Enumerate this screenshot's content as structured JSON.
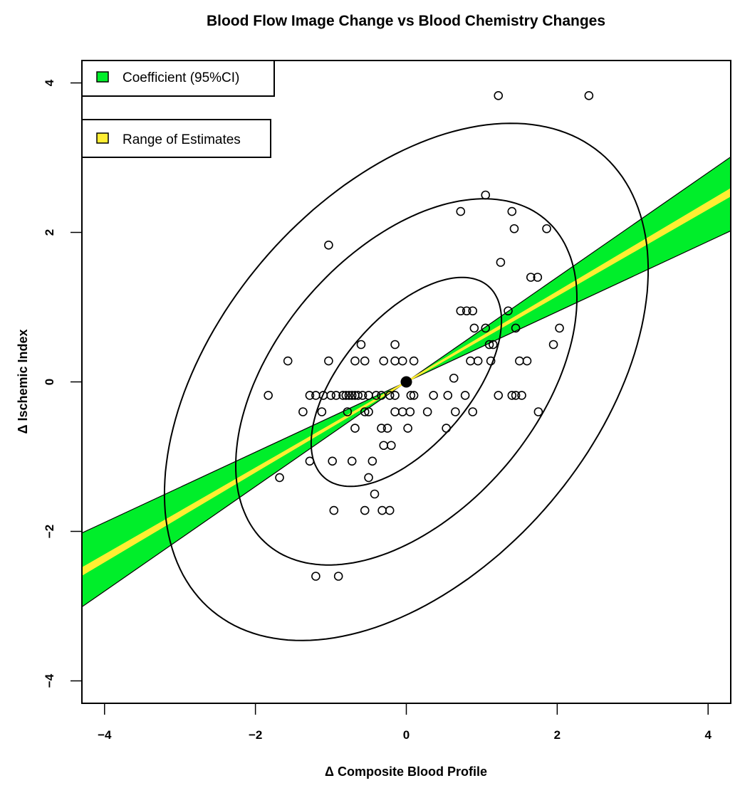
{
  "chart_data": {
    "type": "scatter",
    "title": "Blood Flow Image Change vs Blood Chemistry Changes",
    "xlabel": "Δ Composite Blood Profile",
    "ylabel": "Δ Ischemic Index",
    "xlim": [
      -4.3,
      4.3
    ],
    "ylim": [
      -4.3,
      4.3
    ],
    "xticks": [
      "−4",
      "−2",
      "0",
      "2",
      "4"
    ],
    "yticks": [
      "−4",
      "−2",
      "0",
      "2",
      "4"
    ],
    "xtick_values": [
      -4,
      -2,
      0,
      2,
      4
    ],
    "ytick_values": [
      -4,
      -2,
      0,
      2,
      4
    ],
    "grid": false,
    "legend": [
      {
        "label": "Coefficient (95%CI)",
        "color": "#00ee2a"
      },
      {
        "label": "Range of Estimates",
        "color": "#ffee33"
      }
    ],
    "legend_placement": "top-left",
    "colors": {
      "ci_band": "#00ee2a",
      "estimate_line": "#ffee33",
      "points": "#000000"
    },
    "center_point": [
      0,
      0
    ],
    "regression": {
      "slope": 0.59,
      "ci_lower_slope": 0.47,
      "ci_upper_slope": 0.7,
      "range_lower_slope": 0.58,
      "range_upper_slope": 0.6
    },
    "ellipses": [
      {
        "center": [
          0,
          0
        ],
        "a": 1.68,
        "b": 0.85,
        "angle_deg": 50
      },
      {
        "center": [
          0,
          0
        ],
        "a": 2.85,
        "b": 1.73,
        "angle_deg": 50
      },
      {
        "center": [
          0,
          0
        ],
        "a": 4.0,
        "b": 2.5,
        "angle_deg": 50
      }
    ],
    "points": [
      [
        1.22,
        3.83
      ],
      [
        2.42,
        3.83
      ],
      [
        1.05,
        2.5
      ],
      [
        0.72,
        2.28
      ],
      [
        1.4,
        2.28
      ],
      [
        1.43,
        2.05
      ],
      [
        1.86,
        2.05
      ],
      [
        -1.03,
        1.83
      ],
      [
        1.25,
        1.6
      ],
      [
        1.65,
        1.4
      ],
      [
        1.74,
        1.4
      ],
      [
        0.72,
        0.95
      ],
      [
        0.8,
        0.95
      ],
      [
        0.88,
        0.95
      ],
      [
        1.35,
        0.95
      ],
      [
        0.9,
        0.72
      ],
      [
        1.05,
        0.72
      ],
      [
        1.45,
        0.72
      ],
      [
        2.03,
        0.72
      ],
      [
        -0.6,
        0.5
      ],
      [
        -0.15,
        0.5
      ],
      [
        1.1,
        0.5
      ],
      [
        1.15,
        0.5
      ],
      [
        1.95,
        0.5
      ],
      [
        -1.57,
        0.28
      ],
      [
        -1.03,
        0.28
      ],
      [
        -0.68,
        0.28
      ],
      [
        -0.55,
        0.28
      ],
      [
        -0.3,
        0.28
      ],
      [
        -0.15,
        0.28
      ],
      [
        -0.05,
        0.28
      ],
      [
        0.1,
        0.28
      ],
      [
        0.85,
        0.28
      ],
      [
        0.95,
        0.28
      ],
      [
        1.12,
        0.28
      ],
      [
        1.5,
        0.28
      ],
      [
        1.6,
        0.28
      ],
      [
        0.63,
        0.05
      ],
      [
        -1.83,
        -0.18
      ],
      [
        -1.28,
        -0.18
      ],
      [
        -1.2,
        -0.18
      ],
      [
        -1.1,
        -0.18
      ],
      [
        -1.0,
        -0.18
      ],
      [
        -0.93,
        -0.18
      ],
      [
        -0.84,
        -0.18
      ],
      [
        -0.8,
        -0.18
      ],
      [
        -0.76,
        -0.18
      ],
      [
        -0.72,
        -0.18
      ],
      [
        -0.68,
        -0.18
      ],
      [
        -0.64,
        -0.18
      ],
      [
        -0.58,
        -0.18
      ],
      [
        -0.5,
        -0.18
      ],
      [
        -0.4,
        -0.18
      ],
      [
        -0.33,
        -0.18
      ],
      [
        -0.22,
        -0.18
      ],
      [
        -0.15,
        -0.18
      ],
      [
        0.06,
        -0.18
      ],
      [
        0.1,
        -0.18
      ],
      [
        0.36,
        -0.18
      ],
      [
        0.55,
        -0.18
      ],
      [
        0.78,
        -0.18
      ],
      [
        1.22,
        -0.18
      ],
      [
        1.4,
        -0.18
      ],
      [
        1.45,
        -0.18
      ],
      [
        1.53,
        -0.18
      ],
      [
        -1.37,
        -0.4
      ],
      [
        -1.12,
        -0.4
      ],
      [
        -0.78,
        -0.4
      ],
      [
        -0.55,
        -0.4
      ],
      [
        -0.5,
        -0.4
      ],
      [
        -0.15,
        -0.4
      ],
      [
        -0.05,
        -0.4
      ],
      [
        0.05,
        -0.4
      ],
      [
        0.28,
        -0.4
      ],
      [
        0.65,
        -0.4
      ],
      [
        0.88,
        -0.4
      ],
      [
        1.75,
        -0.4
      ],
      [
        -0.68,
        -0.62
      ],
      [
        -0.33,
        -0.62
      ],
      [
        -0.25,
        -0.62
      ],
      [
        0.02,
        -0.62
      ],
      [
        0.53,
        -0.62
      ],
      [
        -0.3,
        -0.85
      ],
      [
        -0.2,
        -0.85
      ],
      [
        -1.28,
        -1.06
      ],
      [
        -0.98,
        -1.06
      ],
      [
        -0.72,
        -1.06
      ],
      [
        -0.45,
        -1.06
      ],
      [
        -1.68,
        -1.28
      ],
      [
        -0.5,
        -1.28
      ],
      [
        -0.42,
        -1.5
      ],
      [
        -0.96,
        -1.72
      ],
      [
        -0.55,
        -1.72
      ],
      [
        -0.32,
        -1.72
      ],
      [
        -0.22,
        -1.72
      ],
      [
        -1.2,
        -2.6
      ],
      [
        -0.9,
        -2.6
      ]
    ]
  }
}
